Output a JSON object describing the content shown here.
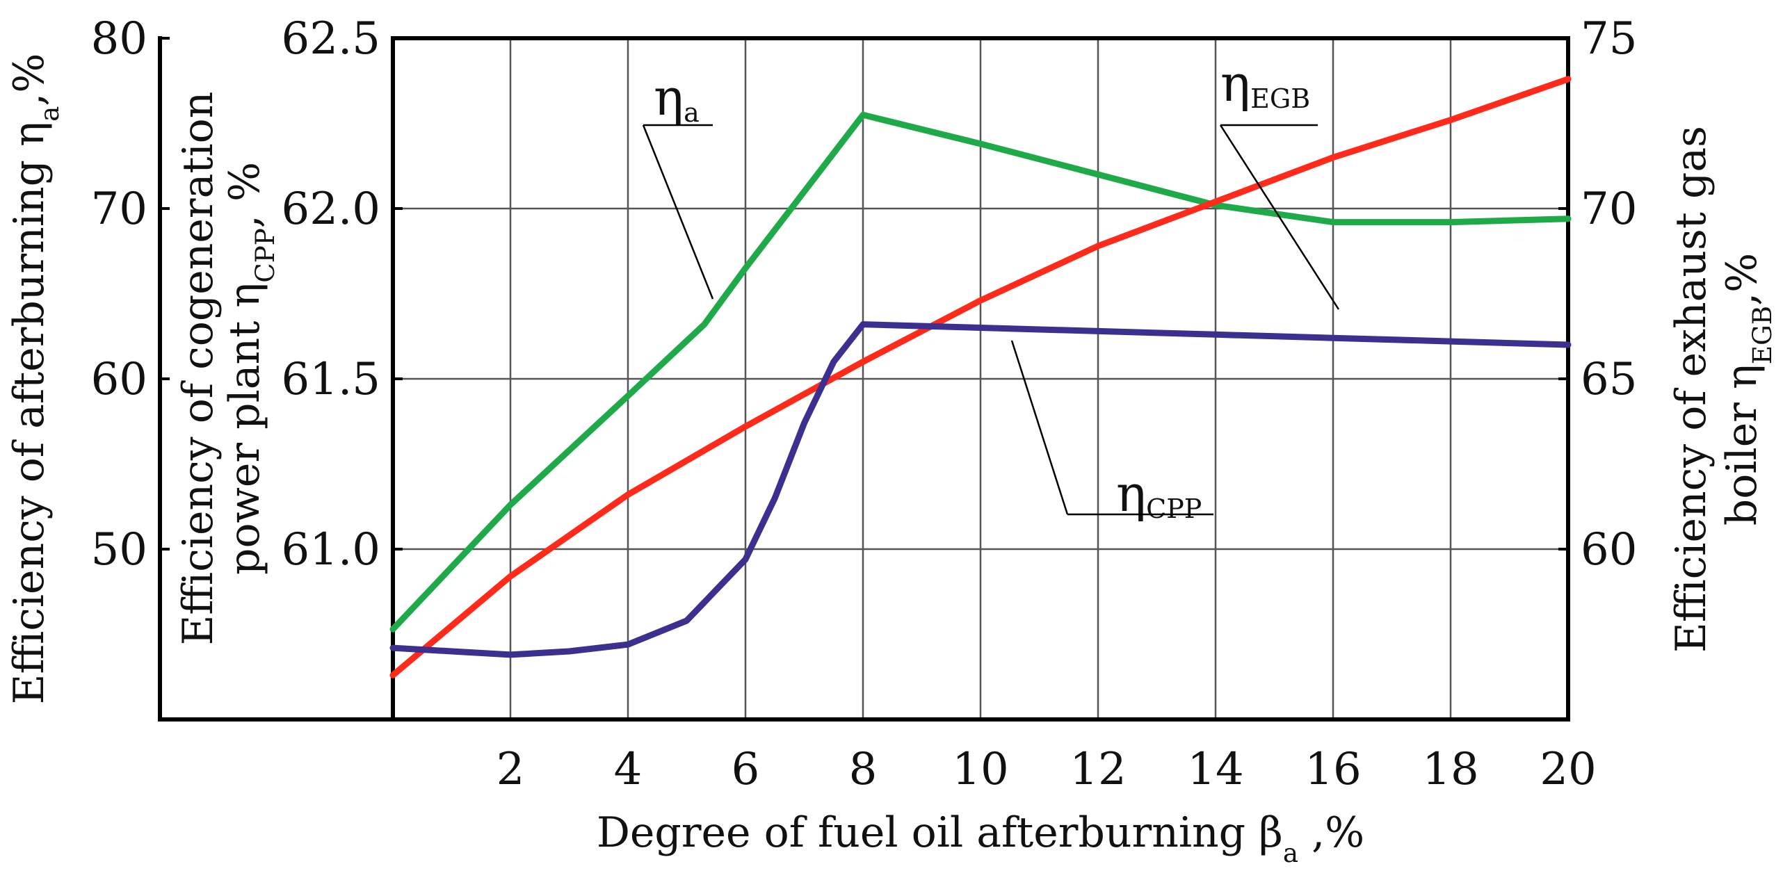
{
  "chart_data": {
    "type": "line",
    "title": "",
    "x": [
      0,
      2,
      4,
      6,
      8,
      10,
      12,
      14,
      16,
      18,
      20
    ],
    "x_ticks": [
      "2",
      "4",
      "6",
      "8",
      "10",
      "12",
      "14",
      "16",
      "18",
      "20"
    ],
    "xlabel": {
      "main": "Degree of fuel oil afterburning β",
      "sub": "a",
      "tail": " ,%"
    },
    "xlim": [
      0,
      20
    ],
    "grid": true,
    "axes": {
      "left_outer": {
        "label": {
          "main": "Efficiency of afterburning  η",
          "sub": "a",
          "tail": ",%"
        },
        "ticks": [
          "50",
          "60",
          "70",
          "80"
        ],
        "ylim": [
          40,
          80
        ]
      },
      "left_inner": {
        "label_line1": "Efficiency of cogeneration",
        "label_line2": {
          "main": "power plant  η",
          "sub": "CPP",
          "tail": ", %"
        },
        "ticks": [
          "61.0",
          "61.5",
          "62.0",
          "62.5"
        ],
        "ylim": [
          60.5,
          62.5
        ]
      },
      "right": {
        "label_line1": "Efficiency of exhaust gas",
        "label_line2": {
          "main": "boiler η",
          "sub": "EGB",
          "tail": ",%"
        },
        "ticks": [
          "60",
          "65",
          "70",
          "75"
        ],
        "ylim": [
          55,
          75
        ]
      }
    },
    "series": [
      {
        "name": "ηa",
        "annotation": {
          "main": "η",
          "sub": "a"
        },
        "axis": "left_outer",
        "color": "#1faa4a",
        "x": [
          0,
          2,
          4,
          5.3,
          6,
          8,
          10,
          12,
          14,
          16,
          18,
          20
        ],
        "values": [
          45.3,
          52.6,
          59,
          63.2,
          66.5,
          75.5,
          73.8,
          72,
          70.2,
          69.2,
          69.2,
          69.4
        ]
      },
      {
        "name": "ηEGB",
        "annotation": {
          "main": "η",
          "sub": "EGB"
        },
        "axis": "right",
        "color": "#ff2a1a",
        "x": [
          0,
          2,
          4,
          6,
          8,
          10,
          12,
          14,
          16,
          18,
          20
        ],
        "values": [
          56.3,
          59.2,
          61.6,
          63.6,
          65.5,
          67.3,
          68.9,
          70.2,
          71.5,
          72.6,
          73.8
        ]
      },
      {
        "name": "ηCPP",
        "annotation": {
          "main": "η",
          "sub": "CPP"
        },
        "axis": "left_inner",
        "color": "#3b2f8f",
        "x": [
          0,
          1,
          2,
          3,
          4,
          5,
          6,
          6.5,
          7,
          7.5,
          8,
          10,
          12,
          14,
          16,
          18,
          20
        ],
        "values": [
          60.71,
          60.7,
          60.69,
          60.7,
          60.72,
          60.79,
          60.97,
          61.15,
          61.37,
          61.55,
          61.66,
          61.65,
          61.64,
          61.63,
          61.62,
          61.61,
          61.6
        ]
      }
    ]
  }
}
